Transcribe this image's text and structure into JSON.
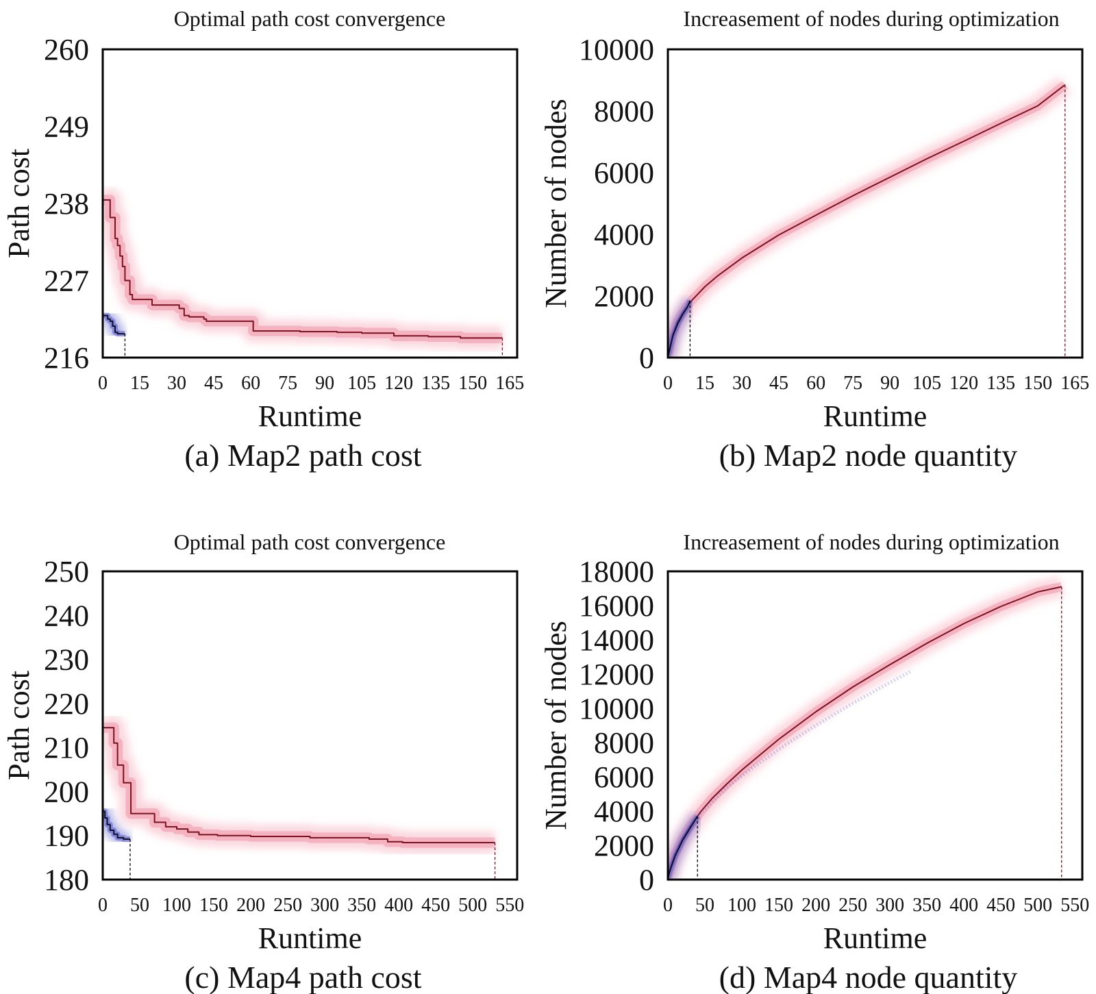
{
  "palette": {
    "red_band": "#ec6f8a",
    "red_line": "#7a1020",
    "blue_band": "#4f55c8",
    "blue_line": "#0d0d2a",
    "axis": "#000000"
  },
  "chart_data": [
    {
      "type": "line",
      "title": "Optimal path cost convergence",
      "xlabel": "Runtime",
      "ylabel": "Path cost",
      "caption": "(a) Map2 path cost",
      "xlim": [
        0,
        168
      ],
      "ylim": [
        216,
        260
      ],
      "xticks": [
        0,
        15,
        30,
        45,
        60,
        75,
        90,
        105,
        120,
        135,
        150,
        165
      ],
      "yticks": [
        216,
        227,
        238,
        249,
        260
      ],
      "series": [
        {
          "kind": "step",
          "color": "red",
          "end_x": 162,
          "x": [
            0,
            2,
            3,
            5,
            6,
            7,
            8,
            9,
            11,
            12,
            19,
            20,
            28,
            31,
            33,
            35,
            38,
            41,
            42,
            45,
            58,
            61,
            66,
            80,
            95,
            105,
            118,
            132,
            145,
            162
          ],
          "y": [
            238.5,
            238.5,
            236,
            233,
            232,
            230.5,
            229,
            227,
            225,
            224.3,
            224.3,
            223.5,
            223.5,
            223,
            222,
            221.8,
            221.8,
            221.5,
            221.2,
            221.2,
            221.2,
            219.8,
            219.8,
            219.7,
            219.6,
            219.5,
            219.1,
            219.0,
            218.8,
            218.8
          ]
        },
        {
          "kind": "step",
          "color": "blue",
          "end_x": 9,
          "x": [
            0,
            1,
            2,
            3,
            4,
            5,
            6,
            9
          ],
          "y": [
            222,
            222,
            221.5,
            221.2,
            220.5,
            219.6,
            219.4,
            219.4
          ]
        }
      ]
    },
    {
      "type": "line",
      "title": "Increasement of nodes during optimization",
      "xlabel": "Runtime",
      "ylabel": "Number of nodes",
      "caption": "(b) Map2 node quantity",
      "xlim": [
        0,
        168
      ],
      "ylim": [
        0,
        10000
      ],
      "xticks": [
        0,
        15,
        30,
        45,
        60,
        75,
        90,
        105,
        120,
        135,
        150,
        165
      ],
      "yticks": [
        0,
        2000,
        4000,
        6000,
        8000,
        10000
      ],
      "series": [
        {
          "kind": "line",
          "color": "red",
          "end_x": 161,
          "x": [
            0,
            1,
            2,
            4,
            6,
            8,
            10,
            15,
            20,
            30,
            45,
            60,
            75,
            90,
            105,
            120,
            135,
            150,
            161
          ],
          "y": [
            0,
            400,
            750,
            1180,
            1450,
            1680,
            1880,
            2300,
            2640,
            3230,
            3980,
            4620,
            5250,
            5850,
            6450,
            7020,
            7600,
            8170,
            8850
          ]
        },
        {
          "kind": "line",
          "color": "blue",
          "end_x": 9,
          "x": [
            0,
            1,
            2,
            4,
            6,
            8,
            9
          ],
          "y": [
            0,
            350,
            700,
            1100,
            1400,
            1650,
            1850
          ]
        }
      ]
    },
    {
      "type": "line",
      "title": "Optimal path cost convergence",
      "xlabel": "Runtime",
      "ylabel": "Path cost",
      "caption": "(c) Map4 path cost",
      "xlim": [
        0,
        560
      ],
      "ylim": [
        180,
        250
      ],
      "xticks": [
        0,
        50,
        100,
        150,
        200,
        250,
        300,
        350,
        400,
        450,
        500,
        550
      ],
      "yticks": [
        180,
        190,
        200,
        210,
        220,
        230,
        240,
        250
      ],
      "series": [
        {
          "kind": "step",
          "color": "red",
          "end_x": 530,
          "x": [
            0,
            10,
            15,
            20,
            28,
            38,
            65,
            70,
            85,
            100,
            115,
            130,
            155,
            200,
            280,
            360,
            385,
            405,
            530
          ],
          "y": [
            214.5,
            214.5,
            211,
            206,
            202,
            195,
            195,
            193,
            192,
            191.5,
            190.8,
            190.2,
            190.0,
            189.8,
            189.5,
            189.2,
            188.6,
            188.4,
            188.4
          ]
        },
        {
          "kind": "step",
          "color": "blue",
          "end_x": 37,
          "x": [
            0,
            3,
            6,
            10,
            15,
            20,
            28,
            37
          ],
          "y": [
            195.5,
            194,
            192.5,
            191.2,
            190.3,
            189.5,
            189.2,
            189.2
          ]
        }
      ]
    },
    {
      "type": "line",
      "title": "Increasement of nodes during optimization",
      "xlabel": "Runtime",
      "ylabel": "Number of nodes",
      "caption": "(d) Map4 node quantity",
      "xlim": [
        0,
        560
      ],
      "ylim": [
        0,
        18000
      ],
      "xticks": [
        0,
        50,
        100,
        150,
        200,
        250,
        300,
        350,
        400,
        450,
        500,
        550
      ],
      "yticks": [
        0,
        2000,
        4000,
        6000,
        8000,
        10000,
        12000,
        14000,
        16000,
        18000
      ],
      "series": [
        {
          "kind": "line",
          "color": "red",
          "end_x": 532,
          "x": [
            0,
            2,
            5,
            10,
            20,
            30,
            45,
            60,
            80,
            100,
            150,
            200,
            250,
            300,
            350,
            400,
            450,
            500,
            532
          ],
          "y": [
            0,
            500,
            900,
            1500,
            2400,
            3100,
            4000,
            4750,
            5600,
            6400,
            8200,
            9800,
            11250,
            12550,
            13800,
            14950,
            15950,
            16800,
            17100
          ]
        },
        {
          "kind": "line",
          "color": "blue",
          "end_x": 40,
          "x": [
            0,
            2,
            5,
            10,
            20,
            30,
            40
          ],
          "y": [
            0,
            400,
            800,
            1400,
            2300,
            3000,
            3700
          ]
        },
        {
          "kind": "trace",
          "color": "blue-faint",
          "x": [
            40,
            80,
            120,
            160,
            200,
            250,
            300,
            330
          ],
          "y": [
            3700,
            5400,
            6700,
            7900,
            9000,
            10300,
            11500,
            12200
          ]
        }
      ]
    }
  ]
}
